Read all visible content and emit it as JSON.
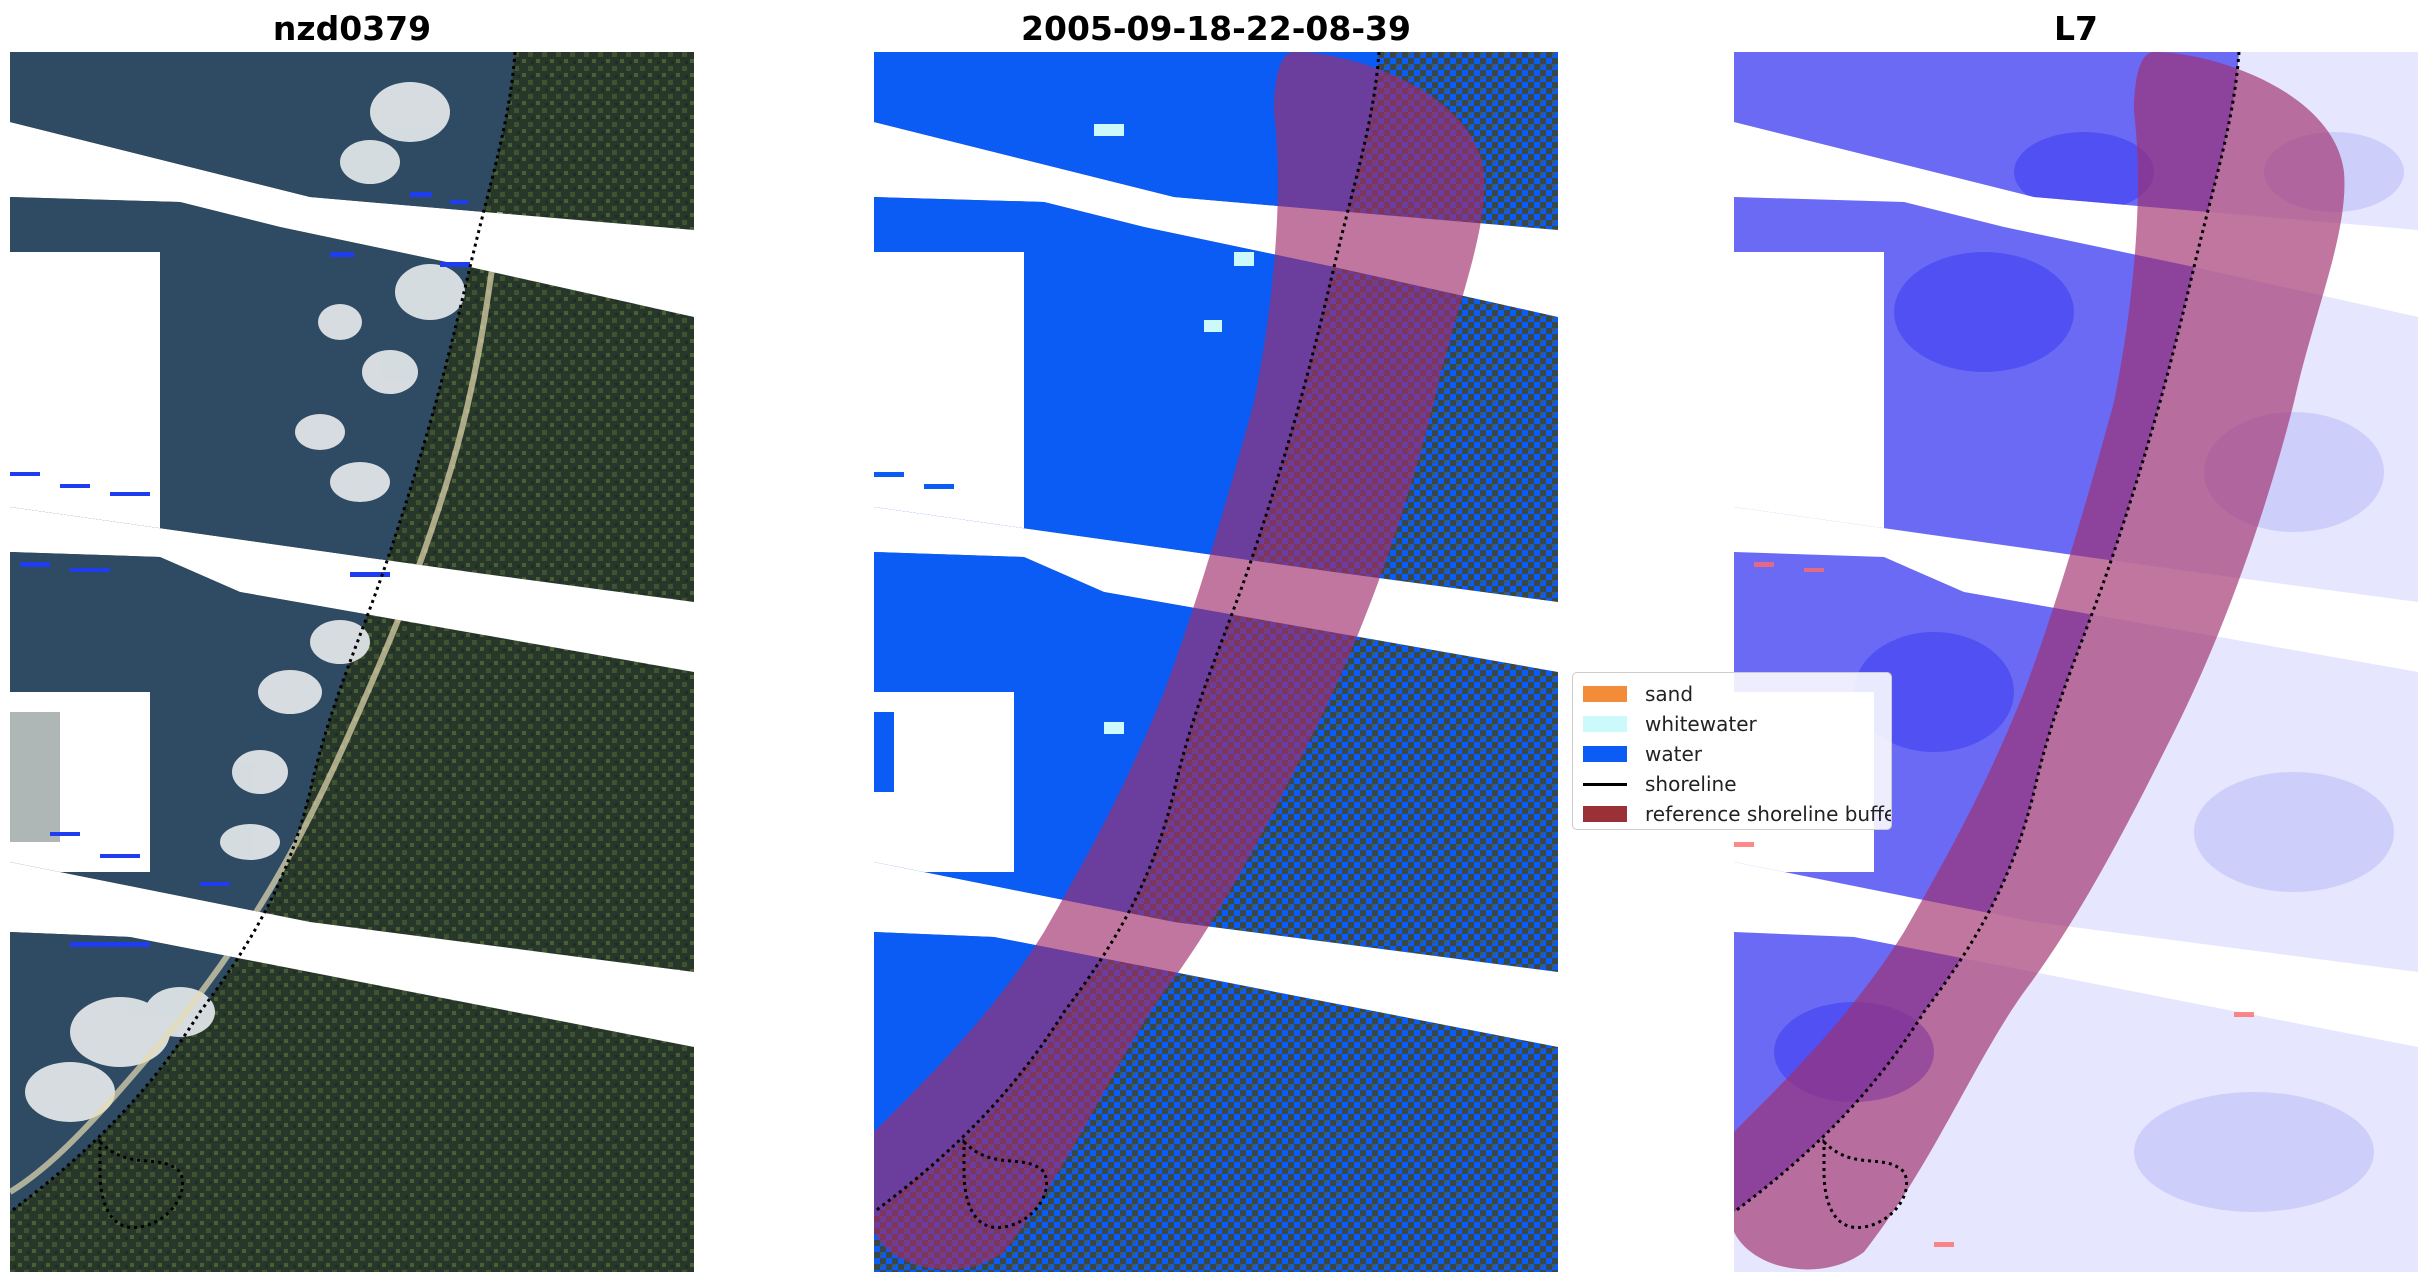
{
  "panels": [
    {
      "title": "nzd0379"
    },
    {
      "title": "2005-09-18-22-08-39"
    },
    {
      "title": "L7"
    }
  ],
  "legend": {
    "items": [
      {
        "label": "sand",
        "color": "#f28c38",
        "kind": "patch"
      },
      {
        "label": "whitewater",
        "color": "#ccfafa",
        "kind": "patch"
      },
      {
        "label": "water",
        "color": "#0a5cf5",
        "kind": "patch"
      },
      {
        "label": "shoreline",
        "color": "#000000",
        "kind": "line"
      },
      {
        "label": "reference shoreline buffer",
        "color": "#9b3136",
        "kind": "patch"
      }
    ]
  },
  "colors": {
    "ocean": "#2f4a63",
    "land": "#27382a",
    "whitewater_cloud": "#dfe4e6",
    "classified_water": "#0a5cf5",
    "classified_land": "#37474a",
    "buffer_overlay": "#a02d6b",
    "index_water": "#3c3cf0",
    "index_land": "#e6e6ff"
  }
}
